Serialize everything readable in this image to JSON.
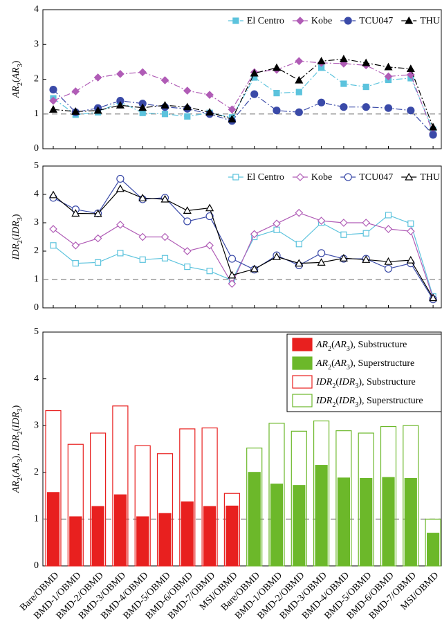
{
  "chart_data": [
    {
      "type": "line",
      "ylabel": "AR2(AR3)",
      "ylim": [
        0,
        4
      ],
      "yticks": [
        0,
        1,
        2,
        3,
        4
      ],
      "reference_line": 1,
      "legend": "top-right",
      "filled_markers": true,
      "line_style": "dashed",
      "series": [
        {
          "name": "El Centro",
          "color": "#5cc3dd",
          "marker": "square",
          "values": [
            1.45,
            0.98,
            1.05,
            1.35,
            1.03,
            1.0,
            0.93,
            1.03,
            0.9,
            2.05,
            1.6,
            1.63,
            2.33,
            1.87,
            1.78,
            1.98,
            2.03,
            0.55
          ]
        },
        {
          "name": "Kobe",
          "color": "#b05cb6",
          "marker": "diamond",
          "values": [
            1.38,
            1.65,
            2.05,
            2.15,
            2.2,
            1.97,
            1.67,
            1.55,
            1.13,
            2.2,
            2.27,
            2.52,
            2.47,
            2.45,
            2.4,
            2.08,
            2.13,
            0.45
          ]
        },
        {
          "name": "TCU047",
          "color": "#3a4aa8",
          "marker": "circle",
          "values": [
            1.7,
            1.05,
            1.17,
            1.38,
            1.3,
            1.2,
            1.15,
            1.0,
            0.8,
            1.57,
            1.1,
            1.05,
            1.33,
            1.2,
            1.2,
            1.17,
            1.1,
            0.4
          ]
        },
        {
          "name": "THU",
          "color": "#000000",
          "marker": "triangle",
          "values": [
            1.13,
            1.07,
            1.1,
            1.25,
            1.18,
            1.25,
            1.2,
            1.05,
            0.85,
            2.17,
            2.33,
            1.97,
            2.52,
            2.58,
            2.47,
            2.35,
            2.3,
            0.62
          ]
        }
      ]
    },
    {
      "type": "line",
      "ylabel": "IDR2(IDR3)",
      "ylim": [
        0,
        5
      ],
      "yticks": [
        0,
        1,
        2,
        3,
        4,
        5
      ],
      "reference_line": 1,
      "legend": "top-right",
      "filled_markers": false,
      "line_style": "solid",
      "series": [
        {
          "name": "El Centro",
          "color": "#5cc3dd",
          "marker": "square",
          "values": [
            2.2,
            1.57,
            1.6,
            1.93,
            1.7,
            1.75,
            1.45,
            1.3,
            0.97,
            2.5,
            2.75,
            2.25,
            3.0,
            2.58,
            2.63,
            3.27,
            2.97,
            0.4
          ]
        },
        {
          "name": "Kobe",
          "color": "#b05cb6",
          "marker": "diamond",
          "values": [
            2.78,
            2.2,
            2.45,
            2.93,
            2.5,
            2.5,
            2.0,
            2.2,
            0.85,
            2.6,
            2.97,
            3.35,
            3.07,
            3.0,
            3.0,
            2.78,
            2.7,
            0.35
          ]
        },
        {
          "name": "TCU047",
          "color": "#3a4aa8",
          "marker": "circle",
          "values": [
            3.88,
            3.47,
            3.33,
            4.55,
            3.83,
            3.88,
            3.05,
            3.23,
            1.73,
            1.35,
            1.85,
            1.5,
            1.93,
            1.73,
            1.73,
            1.38,
            1.57,
            0.3
          ]
        },
        {
          "name": "THU",
          "color": "#000000",
          "marker": "triangle",
          "values": [
            3.98,
            3.33,
            3.32,
            4.2,
            3.87,
            3.83,
            3.43,
            3.52,
            1.15,
            1.37,
            1.8,
            1.57,
            1.6,
            1.75,
            1.7,
            1.63,
            1.68,
            0.35
          ]
        }
      ]
    },
    {
      "type": "bar",
      "ylabel": "AR2(AR3), IDR2(IDR3)",
      "ylim": [
        0,
        5
      ],
      "yticks": [
        0,
        1,
        2,
        3,
        4,
        5
      ],
      "reference_line": 1,
      "legend": "top-right",
      "categories": [
        "Bare/OBMD",
        "BMD-1/OBMD",
        "BMD-2/OBMD",
        "BMD-3/OBMD",
        "BMD-4/OBMD",
        "BMD-5/OBMD",
        "BMD-6/OBMD",
        "BMD-7/OBMD",
        "MSI/OBMD",
        "Bare/OBMD",
        "BMD-1/OBMD",
        "BMD-2/OBMD",
        "BMD-3/OBMD",
        "BMD-4/OBMD",
        "BMD-5/OBMD",
        "BMD-6/OBMD",
        "BMD-7/OBMD",
        "MSI/OBMD"
      ],
      "series": [
        {
          "name": "AR2(AR3), Substructure",
          "color": "#e8201f",
          "style": "filled",
          "values": [
            1.57,
            1.05,
            1.27,
            1.52,
            1.05,
            1.12,
            1.37,
            1.27,
            1.28,
            null,
            null,
            null,
            null,
            null,
            null,
            null,
            null,
            null
          ]
        },
        {
          "name": "AR2(AR3), Superstructure",
          "color": "#6cb82a",
          "style": "filled",
          "values": [
            null,
            null,
            null,
            null,
            null,
            null,
            null,
            null,
            null,
            2.0,
            1.75,
            1.72,
            2.15,
            1.88,
            1.87,
            1.89,
            1.87,
            0.7
          ]
        },
        {
          "name": "IDR2(IDR3), Substructure",
          "color": "#e8201f",
          "style": "outline",
          "values": [
            3.32,
            2.6,
            2.84,
            3.42,
            2.57,
            2.4,
            2.93,
            2.95,
            1.55,
            null,
            null,
            null,
            null,
            null,
            null,
            null,
            null,
            null
          ]
        },
        {
          "name": "IDR2(IDR3), Superstructure",
          "color": "#6cb82a",
          "style": "outline",
          "values": [
            null,
            null,
            null,
            null,
            null,
            null,
            null,
            null,
            null,
            2.52,
            3.05,
            2.88,
            3.1,
            2.89,
            2.84,
            2.98,
            3.0,
            1.0
          ]
        }
      ]
    }
  ]
}
